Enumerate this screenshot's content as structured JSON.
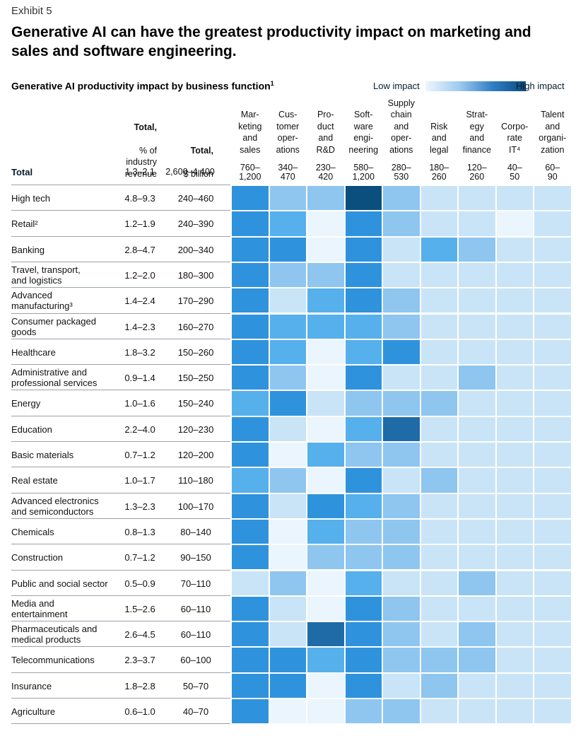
{
  "header": {
    "exhibit": "Exhibit 5",
    "title": "Generative AI can have the greatest productivity impact on marketing and sales and software engineering.",
    "subtitle": "Generative AI productivity impact by business function",
    "subtitle_footnote": "1"
  },
  "legend": {
    "low": "Low impact",
    "high": "High impact"
  },
  "columns": {
    "revenue_head": "Total,",
    "revenue_sub": "% of\nindustry\nrevenue",
    "billion_head": "Total,",
    "billion_sub": "$ billion",
    "functions": [
      "Mar-\nketing\nand\nsales",
      "Cus-\ntomer\noper-\nations",
      "Pro-\nduct\nand\nR&D",
      "Soft-\nware\nengi-\nneering",
      "Supply\nchain\nand\noper-\nations",
      "Risk\nand\nlegal",
      "Strat-\negy\nand\nfinance",
      "Corpo-\nrate\nIT⁴",
      "Talent\nand\norgani-\nzation"
    ]
  },
  "total_row": {
    "label": "Total",
    "revenue": "1.3–2.1",
    "billion": "2,600–4,400",
    "functions": [
      "760–\n1,200",
      "340–\n470",
      "230–\n420",
      "580–\n1,200",
      "280–\n530",
      "180–\n260",
      "120–\n260",
      "40–\n50",
      "60–\n90"
    ]
  },
  "chart_data": {
    "type": "heatmap",
    "title": "Generative AI productivity impact by business function",
    "scale": "impact level 1 (low) to 6 (high)",
    "x": [
      "Marketing and sales",
      "Customer operations",
      "Product and R&D",
      "Software engineering",
      "Supply chain and operations",
      "Risk and legal",
      "Strategy and finance",
      "Corporate IT",
      "Talent and organization"
    ],
    "rows": [
      {
        "industry": "High tech",
        "revenue": "4.8–9.3",
        "billion": "240–460",
        "levels": [
          5,
          3,
          3,
          6,
          3,
          2,
          2,
          2,
          2
        ]
      },
      {
        "industry": "Retail²",
        "revenue": "1.2–1.9",
        "billion": "240–390",
        "levels": [
          5,
          4,
          1,
          5,
          3,
          2,
          2,
          1,
          2
        ]
      },
      {
        "industry": "Banking",
        "revenue": "2.8–4.7",
        "billion": "200–340",
        "levels": [
          5,
          5,
          1,
          5,
          2,
          4,
          3,
          2,
          2
        ]
      },
      {
        "industry": "Travel, transport,\nand logistics",
        "revenue": "1.2–2.0",
        "billion": "180–300",
        "levels": [
          5,
          3,
          3,
          5,
          2,
          2,
          2,
          2,
          2
        ]
      },
      {
        "industry": "Advanced\nmanufacturing³",
        "revenue": "1.4–2.4",
        "billion": "170–290",
        "levels": [
          5,
          2,
          4,
          5,
          3,
          2,
          2,
          2,
          2
        ]
      },
      {
        "industry": "Consumer packaged\ngoods",
        "revenue": "1.4–2.3",
        "billion": "160–270",
        "levels": [
          5,
          4,
          4,
          4,
          3,
          2,
          2,
          2,
          2
        ]
      },
      {
        "industry": "Healthcare",
        "revenue": "1.8–3.2",
        "billion": "150–260",
        "levels": [
          5,
          4,
          1,
          4,
          5,
          2,
          2,
          2,
          2
        ]
      },
      {
        "industry": "Administrative and\nprofessional services",
        "revenue": "0.9–1.4",
        "billion": "150–250",
        "levels": [
          5,
          3,
          1,
          5,
          2,
          2,
          3,
          2,
          2
        ]
      },
      {
        "industry": "Energy",
        "revenue": "1.0–1.6",
        "billion": "150–240",
        "levels": [
          4,
          5,
          2,
          3,
          3,
          3,
          2,
          2,
          2
        ]
      },
      {
        "industry": "Education",
        "revenue": "2.2–4.0",
        "billion": "120–230",
        "levels": [
          5,
          2,
          1,
          4,
          6,
          2,
          2,
          2,
          2
        ]
      },
      {
        "industry": "Basic materials",
        "revenue": "0.7–1.2",
        "billion": "120–200",
        "levels": [
          5,
          1,
          4,
          3,
          3,
          2,
          2,
          2,
          2
        ]
      },
      {
        "industry": "Real estate",
        "revenue": "1.0–1.7",
        "billion": "110–180",
        "levels": [
          4,
          3,
          1,
          5,
          2,
          3,
          2,
          2,
          2
        ]
      },
      {
        "industry": "Advanced electronics\nand semiconductors",
        "revenue": "1.3–2.3",
        "billion": "100–170",
        "levels": [
          5,
          2,
          5,
          4,
          3,
          2,
          2,
          2,
          2
        ]
      },
      {
        "industry": "Chemicals",
        "revenue": "0.8–1.3",
        "billion": "80–140",
        "levels": [
          5,
          1,
          4,
          3,
          3,
          2,
          2,
          2,
          2
        ]
      },
      {
        "industry": "Construction",
        "revenue": "0.7–1.2",
        "billion": "90–150",
        "levels": [
          5,
          1,
          3,
          3,
          3,
          2,
          2,
          2,
          2
        ]
      },
      {
        "industry": "Public and social sector",
        "revenue": "0.5–0.9",
        "billion": "70–110",
        "levels": [
          2,
          3,
          1,
          4,
          2,
          2,
          3,
          2,
          2
        ]
      },
      {
        "industry": "Media and\nentertainment",
        "revenue": "1.5–2.6",
        "billion": "60–110",
        "levels": [
          5,
          2,
          1,
          5,
          3,
          2,
          2,
          2,
          2
        ]
      },
      {
        "industry": "Pharmaceuticals and\nmedical products",
        "revenue": "2.6–4.5",
        "billion": "60–110",
        "levels": [
          5,
          2,
          6,
          5,
          3,
          2,
          3,
          2,
          2
        ]
      },
      {
        "industry": "Telecommunications",
        "revenue": "2.3–3.7",
        "billion": "60–100",
        "levels": [
          5,
          5,
          4,
          5,
          3,
          3,
          3,
          2,
          2
        ]
      },
      {
        "industry": "Insurance",
        "revenue": "1.8–2.8",
        "billion": "50–70",
        "levels": [
          5,
          5,
          1,
          5,
          2,
          3,
          2,
          2,
          2
        ]
      },
      {
        "industry": "Agriculture",
        "revenue": "0.6–1.0",
        "billion": "40–70",
        "levels": [
          5,
          1,
          1,
          3,
          3,
          2,
          2,
          2,
          2
        ]
      }
    ],
    "palette": [
      "#eaf5fd",
      "#c9e4f7",
      "#8ec6f0",
      "#56b0ec",
      "#2e93dc",
      "#1f6ba8"
    ],
    "hightech_software": "#0b4f7f"
  }
}
